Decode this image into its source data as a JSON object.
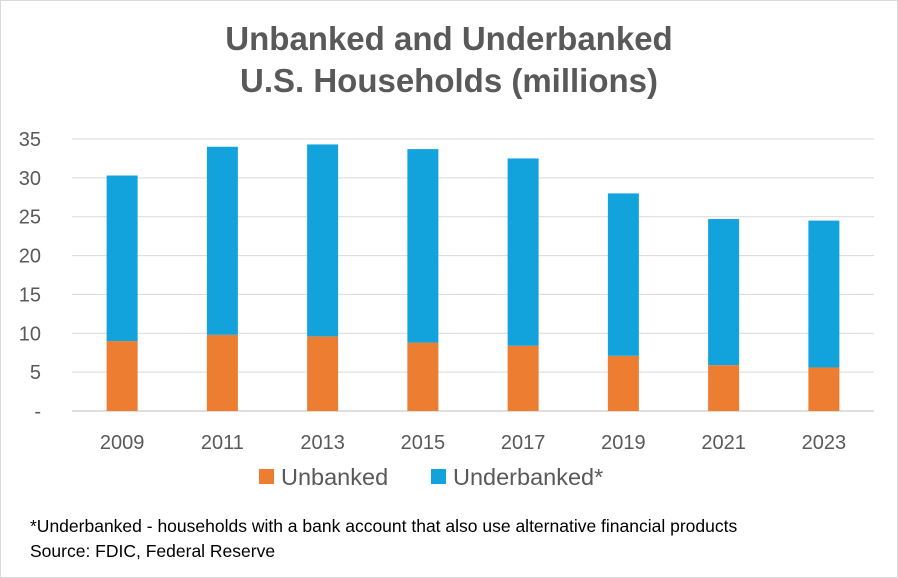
{
  "chart_data": {
    "type": "bar",
    "stacked": true,
    "title_lines": [
      "Unbanked and Underbanked",
      "U.S. Households (millions)"
    ],
    "categories": [
      "2009",
      "2011",
      "2013",
      "2015",
      "2017",
      "2019",
      "2021",
      "2023"
    ],
    "series": [
      {
        "name": "Unbanked",
        "color": "#ed7d31",
        "values": [
          9.0,
          9.8,
          9.6,
          8.8,
          8.4,
          7.1,
          5.9,
          5.6
        ]
      },
      {
        "name": "Underbanked*",
        "color": "#12a3dd",
        "values": [
          21.3,
          24.2,
          24.7,
          24.9,
          24.1,
          20.9,
          18.8,
          18.9
        ]
      }
    ],
    "ylim": [
      0,
      35
    ],
    "yticks": [
      0,
      5,
      10,
      15,
      20,
      25,
      30,
      35
    ],
    "ytick_labels": [
      "-",
      "5",
      "10",
      "15",
      "20",
      "25",
      "30",
      "35"
    ],
    "grid": true,
    "legend_position": "bottom",
    "xlabel": "",
    "ylabel": ""
  },
  "footnotes": [
    "*Underbanked - households with a bank account that also use alternative financial products",
    "Source: FDIC, Federal Reserve"
  ]
}
